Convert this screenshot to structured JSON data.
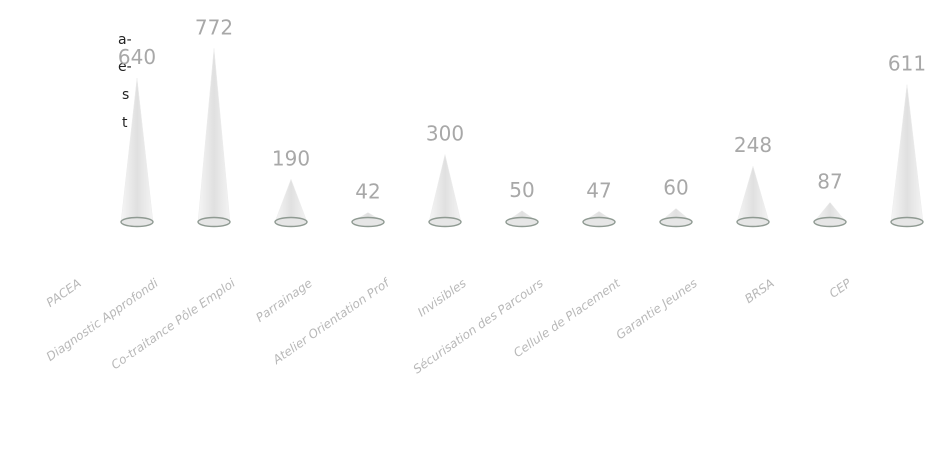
{
  "side_text": [
    "a-",
    "e-",
    "s",
    "t"
  ],
  "chart_data": {
    "type": "cone",
    "categories": [
      "PACEA",
      "Diagnostic Approfondi",
      "Co-traitance Pôle Emploi",
      "Parrainage",
      "Atelier Orientation Prof",
      "Invisibles",
      "Sécurisation des Parcours",
      "Cellule de Placement",
      "Garantie Jeunes",
      "BRSA",
      "CEP"
    ],
    "values": [
      640,
      772,
      190,
      42,
      300,
      50,
      47,
      60,
      248,
      87,
      611
    ],
    "color": "#e6e6e6"
  }
}
